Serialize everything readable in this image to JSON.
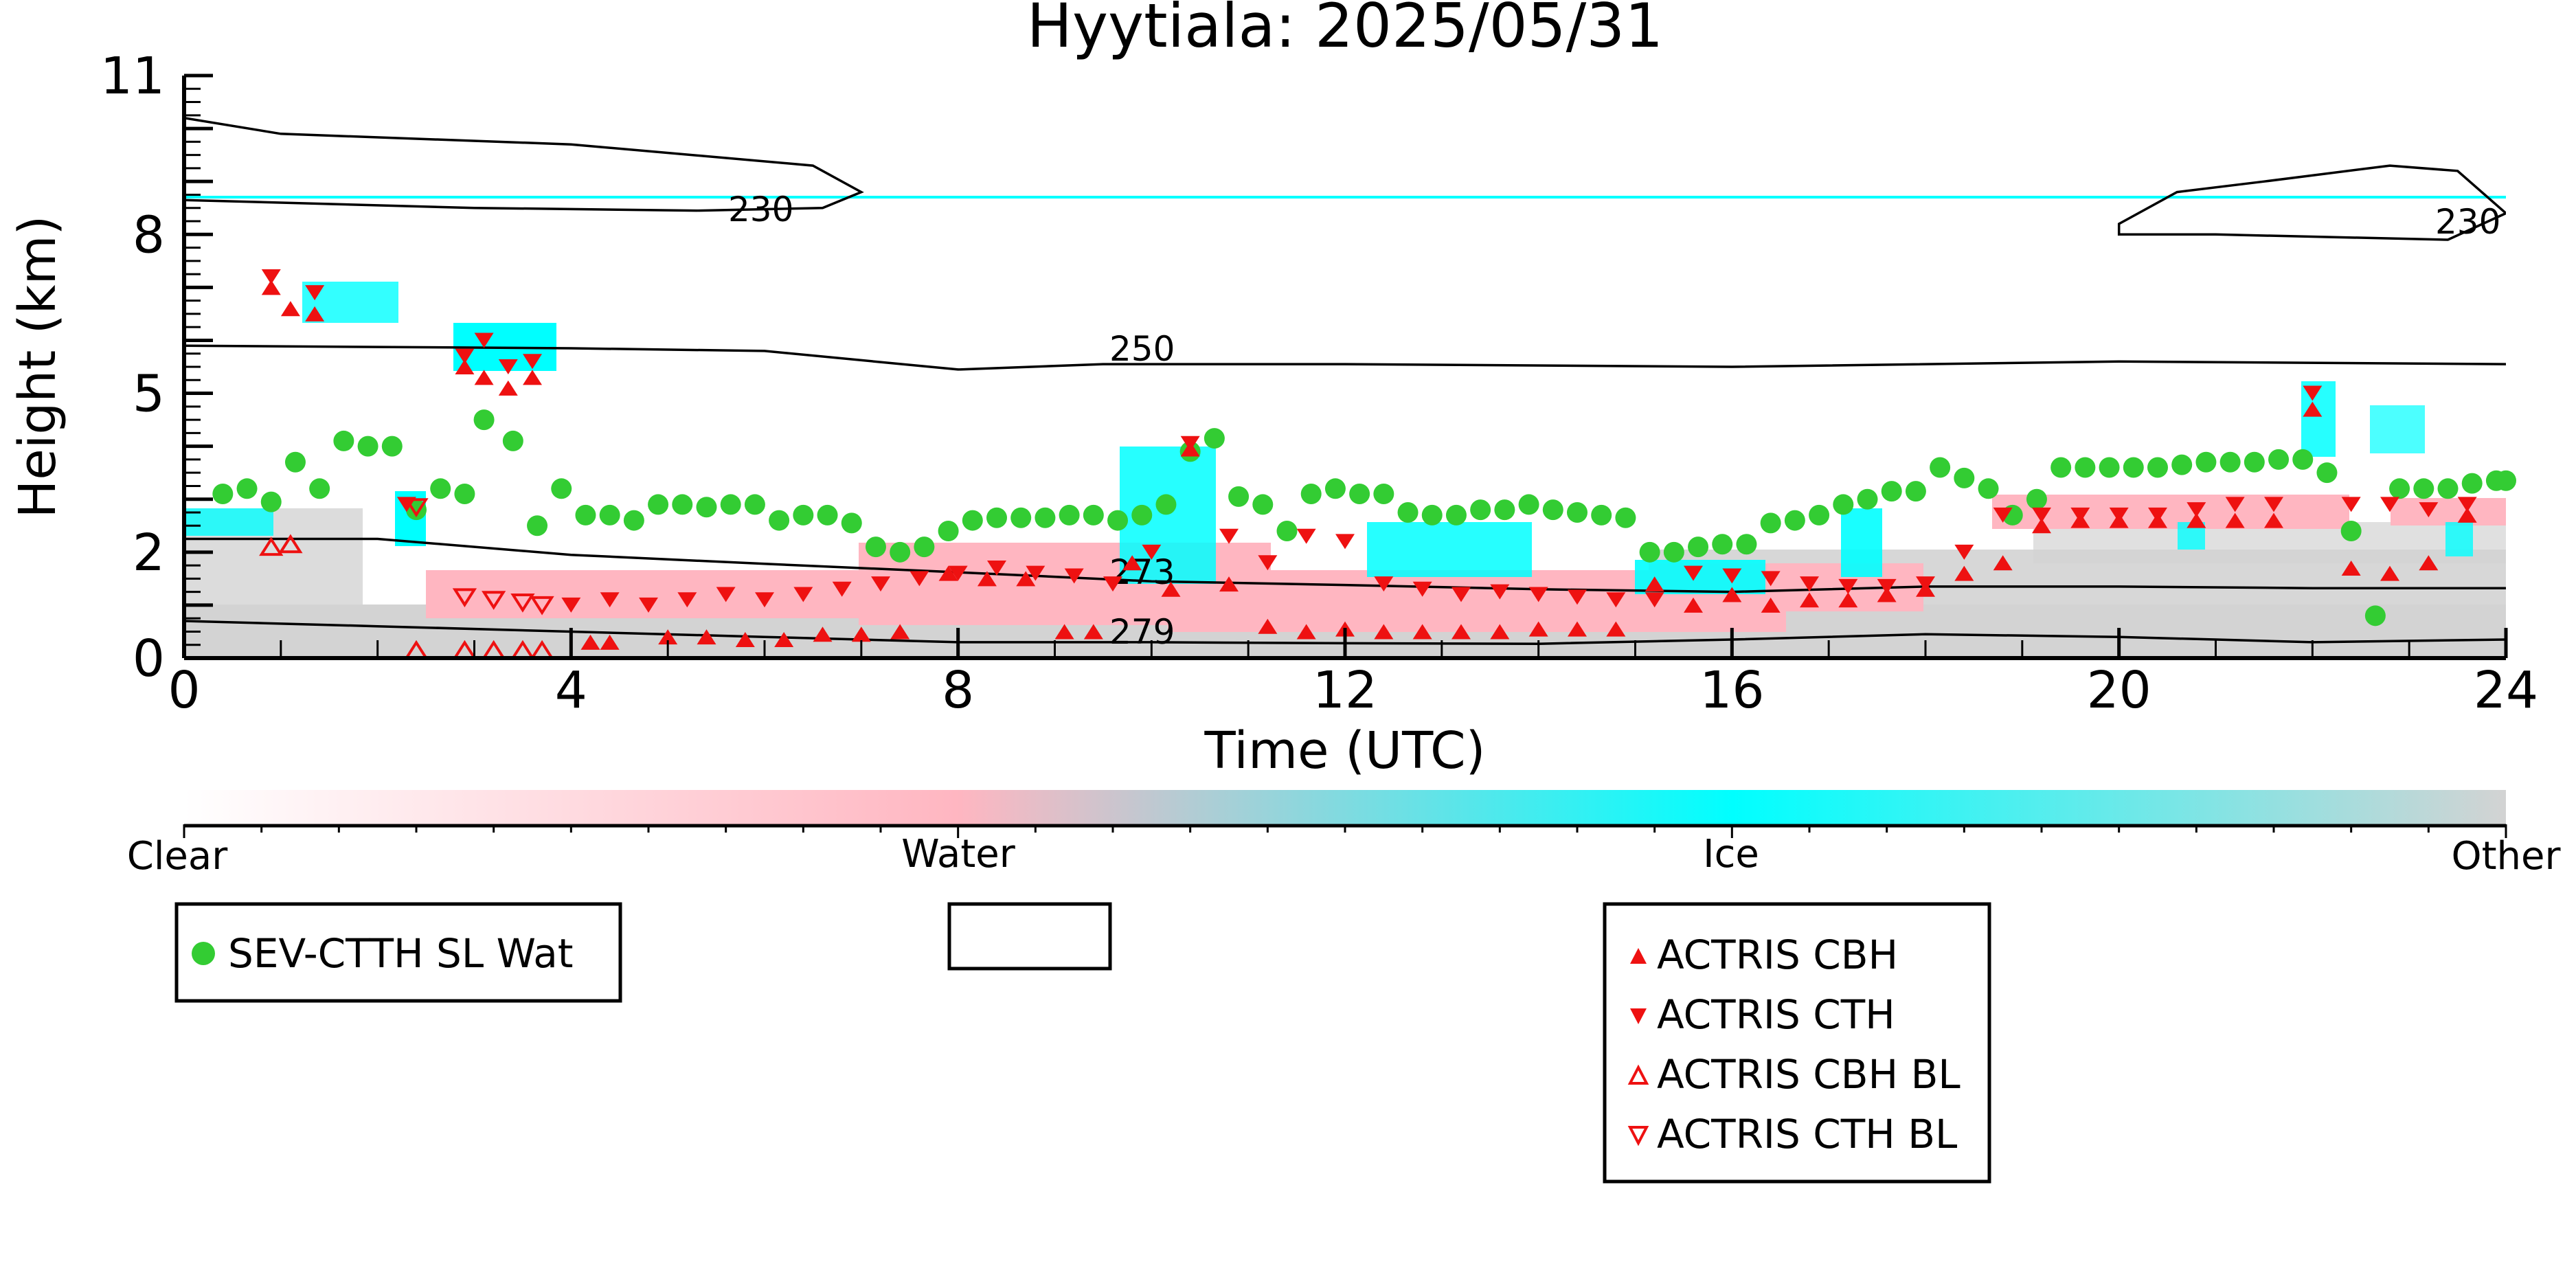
{
  "chart_data": {
    "type": "scatter",
    "title": "Hyytiala: 2025/05/31",
    "xlabel": "Time (UTC)",
    "ylabel": "Height (km)",
    "xlim": [
      0,
      24
    ],
    "ylim": [
      0,
      11
    ],
    "x_ticks": [
      "0",
      "4",
      "8",
      "12",
      "16",
      "20",
      "24"
    ],
    "y_ticks": [
      "0",
      "2",
      "5",
      "8",
      "11"
    ],
    "grid": false,
    "colorbar": {
      "categories": [
        "Clear",
        "Water",
        "Ice",
        "Other"
      ],
      "colors": {
        "clear": "#ffffff",
        "water": "#ffb6c1",
        "ice": "#00ffff",
        "other": "#d3d3d3"
      }
    },
    "contours": [
      {
        "label": "230",
        "points": [
          [
            0,
            10.2
          ],
          [
            1,
            9.9
          ],
          [
            4,
            9.7
          ],
          [
            6.5,
            9.3
          ],
          [
            7,
            8.8
          ],
          [
            6.6,
            8.5
          ],
          [
            5.3,
            8.45
          ],
          [
            3,
            8.5
          ],
          [
            0,
            8.65
          ]
        ]
      },
      {
        "label": "230",
        "points": [
          [
            20,
            8.0
          ],
          [
            21,
            8.0
          ],
          [
            23.4,
            7.9
          ],
          [
            24,
            8.4
          ],
          [
            23.5,
            9.2
          ],
          [
            22.8,
            9.3
          ],
          [
            21.5,
            9.0
          ],
          [
            20.6,
            8.8
          ],
          [
            20,
            8.2
          ]
        ]
      },
      {
        "label": "250",
        "points": [
          [
            0,
            5.9
          ],
          [
            4,
            5.85
          ],
          [
            6,
            5.8
          ],
          [
            8,
            5.45
          ],
          [
            9.5,
            5.55
          ],
          [
            12,
            5.55
          ],
          [
            16,
            5.5
          ],
          [
            20,
            5.6
          ],
          [
            24,
            5.55
          ]
        ]
      },
      {
        "label": "273",
        "points": [
          [
            0,
            2.25
          ],
          [
            2,
            2.25
          ],
          [
            4,
            1.95
          ],
          [
            6,
            1.78
          ],
          [
            8,
            1.62
          ],
          [
            10,
            1.45
          ],
          [
            12,
            1.38
          ],
          [
            14,
            1.3
          ],
          [
            16,
            1.25
          ],
          [
            18,
            1.35
          ],
          [
            20,
            1.35
          ],
          [
            22,
            1.32
          ],
          [
            24,
            1.32
          ]
        ]
      },
      {
        "label": "279",
        "points": [
          [
            0,
            0.7
          ],
          [
            2,
            0.6
          ],
          [
            4,
            0.5
          ],
          [
            6,
            0.4
          ],
          [
            8,
            0.3
          ],
          [
            10,
            0.3
          ],
          [
            12,
            0.28
          ],
          [
            14,
            0.27
          ],
          [
            16,
            0.35
          ],
          [
            18,
            0.45
          ],
          [
            20,
            0.4
          ],
          [
            22,
            0.3
          ],
          [
            24,
            0.35
          ]
        ]
      }
    ],
    "series": [
      {
        "name": "SEV-CTTH SL Wat",
        "marker": "circle",
        "color": "#33cc33",
        "x": [
          0.4,
          0.65,
          0.9,
          1.15,
          1.4,
          1.65,
          1.9,
          2.15,
          2.4,
          2.65,
          2.9,
          3.1,
          3.4,
          3.65,
          3.9,
          4.15,
          4.4,
          4.65,
          4.9,
          5.15,
          5.4,
          5.65,
          5.9,
          6.15,
          6.4,
          6.65,
          6.9,
          7.15,
          7.4,
          7.65,
          7.9,
          8.15,
          8.4,
          8.65,
          8.9,
          9.15,
          9.4,
          9.65,
          9.9,
          10.15,
          10.4,
          10.65,
          10.9,
          11.15,
          11.4,
          11.65,
          11.9,
          12.15,
          12.4,
          12.65,
          12.9,
          13.15,
          13.4,
          13.65,
          13.9,
          14.15,
          14.4,
          14.65,
          14.9,
          15.15,
          15.4,
          15.65,
          15.9,
          16.15,
          16.4,
          16.65,
          16.9,
          17.15,
          17.4,
          17.65,
          17.9,
          18.15,
          18.4,
          18.65,
          18.9,
          19.15,
          19.4,
          19.65,
          19.9,
          20.15,
          20.4,
          20.65,
          20.9,
          21.15,
          21.4,
          21.65,
          21.9,
          22.15,
          22.4,
          22.65,
          22.9,
          23.15,
          23.4,
          23.65,
          23.9,
          24.0
        ],
        "y": [
          3.1,
          3.2,
          2.95,
          3.7,
          3.2,
          4.1,
          4.0,
          4.0,
          2.8,
          3.2,
          3.1,
          4.5,
          4.1,
          2.5,
          3.2,
          2.7,
          2.7,
          2.6,
          2.9,
          2.9,
          2.85,
          2.9,
          2.9,
          2.6,
          2.7,
          2.7,
          2.55,
          2.1,
          2.0,
          2.1,
          2.4,
          2.6,
          2.65,
          2.65,
          2.65,
          2.7,
          2.7,
          2.6,
          2.7,
          2.9,
          3.9,
          4.15,
          3.05,
          2.9,
          2.4,
          3.1,
          3.2,
          3.1,
          3.1,
          2.75,
          2.7,
          2.7,
          2.8,
          2.8,
          2.9,
          2.8,
          2.75,
          2.7,
          2.65,
          2.0,
          2.0,
          2.1,
          2.15,
          2.15,
          2.55,
          2.6,
          2.7,
          2.9,
          3.0,
          3.15,
          3.15,
          3.6,
          3.4,
          3.2,
          2.7,
          3.0,
          3.6,
          3.6,
          3.6,
          3.6,
          3.6,
          3.65,
          3.7,
          3.7,
          3.7,
          3.75,
          3.75,
          3.5,
          2.4,
          0.8,
          3.2,
          3.2,
          3.2,
          3.3,
          3.35,
          3.35
        ]
      },
      {
        "name": "ACTRIS CBH",
        "marker": "triangle-up",
        "color": "#ee1111",
        "filled": true,
        "x": [
          0.9,
          1.1,
          1.35,
          2.9,
          3.1,
          3.35,
          3.6,
          4.2,
          4.4,
          5.0,
          5.4,
          5.8,
          6.2,
          6.6,
          7.0,
          7.4,
          7.9,
          8.3,
          8.7,
          9.1,
          9.4,
          9.8,
          10.2,
          10.4,
          10.8,
          11.2,
          11.6,
          12.0,
          12.4,
          12.8,
          13.2,
          13.6,
          14.0,
          14.4,
          14.8,
          15.2,
          15.6,
          16.0,
          16.4,
          16.8,
          17.2,
          17.6,
          18.0,
          18.4,
          18.8,
          19.2,
          19.6,
          20.0,
          20.4,
          20.8,
          21.2,
          21.6,
          22.0,
          22.4,
          22.8,
          23.2,
          23.6
        ],
        "y": [
          7.0,
          6.6,
          6.5,
          5.5,
          5.3,
          5.1,
          5.3,
          0.3,
          0.3,
          0.4,
          0.4,
          0.35,
          0.35,
          0.45,
          0.45,
          0.5,
          1.6,
          1.5,
          1.5,
          0.5,
          0.5,
          1.8,
          1.3,
          3.95,
          1.4,
          0.6,
          0.5,
          0.55,
          0.5,
          0.5,
          0.5,
          0.5,
          0.55,
          0.55,
          0.55,
          1.4,
          1.0,
          1.2,
          1.0,
          1.1,
          1.1,
          1.2,
          1.3,
          1.6,
          1.8,
          2.5,
          2.6,
          2.6,
          2.6,
          2.6,
          2.6,
          2.6,
          4.7,
          1.7,
          1.6,
          1.8,
          2.7
        ]
      },
      {
        "name": "ACTRIS CTH",
        "marker": "triangle-down",
        "color": "#ee1111",
        "filled": true,
        "x": [
          0.9,
          1.35,
          2.3,
          2.9,
          3.1,
          3.35,
          3.6,
          4.0,
          4.4,
          4.8,
          5.2,
          5.6,
          6.0,
          6.4,
          6.8,
          7.2,
          7.6,
          8.0,
          8.4,
          8.8,
          9.2,
          9.6,
          10.0,
          10.4,
          10.8,
          11.2,
          11.6,
          12.0,
          12.4,
          12.8,
          13.2,
          13.6,
          14.0,
          14.4,
          14.8,
          15.2,
          15.6,
          16.0,
          16.4,
          16.8,
          17.2,
          17.6,
          18.0,
          18.4,
          18.8,
          19.2,
          19.6,
          20.0,
          20.4,
          20.8,
          21.2,
          21.6,
          22.0,
          22.4,
          22.8,
          23.2,
          23.6
        ],
        "y": [
          7.2,
          6.9,
          2.9,
          5.7,
          6.0,
          5.5,
          5.6,
          1.0,
          1.1,
          1.0,
          1.1,
          1.2,
          1.1,
          1.2,
          1.3,
          1.4,
          1.5,
          1.6,
          1.7,
          1.6,
          1.55,
          1.4,
          2.0,
          4.05,
          2.3,
          1.8,
          2.3,
          2.2,
          1.4,
          1.3,
          1.2,
          1.25,
          1.2,
          1.15,
          1.1,
          1.1,
          1.6,
          1.55,
          1.5,
          1.4,
          1.35,
          1.35,
          1.4,
          2.0,
          2.7,
          2.7,
          2.7,
          2.7,
          2.7,
          2.8,
          2.9,
          2.9,
          5.0,
          2.9,
          2.9,
          2.8,
          2.9
        ]
      },
      {
        "name": "ACTRIS CBH BL",
        "marker": "triangle-up",
        "color": "#ee1111",
        "filled": false,
        "x": [
          0.9,
          1.1,
          2.4,
          2.9,
          3.2,
          3.5,
          3.7
        ],
        "y": [
          2.1,
          2.15,
          0.15,
          0.15,
          0.15,
          0.15,
          0.15
        ]
      },
      {
        "name": "ACTRIS CTH BL",
        "marker": "triangle-down",
        "color": "#ee1111",
        "filled": false,
        "x": [
          2.9,
          3.2,
          3.5,
          3.7,
          2.4
        ],
        "y": [
          1.15,
          1.1,
          1.05,
          1.0,
          2.85
        ]
      }
    ]
  },
  "legends": {
    "left": {
      "items": [
        "SEV-CTTH SL Wat"
      ]
    },
    "right": {
      "items": [
        "ACTRIS CBH",
        "ACTRIS CTH",
        "ACTRIS CBH BL",
        "ACTRIS CTH BL"
      ]
    }
  }
}
